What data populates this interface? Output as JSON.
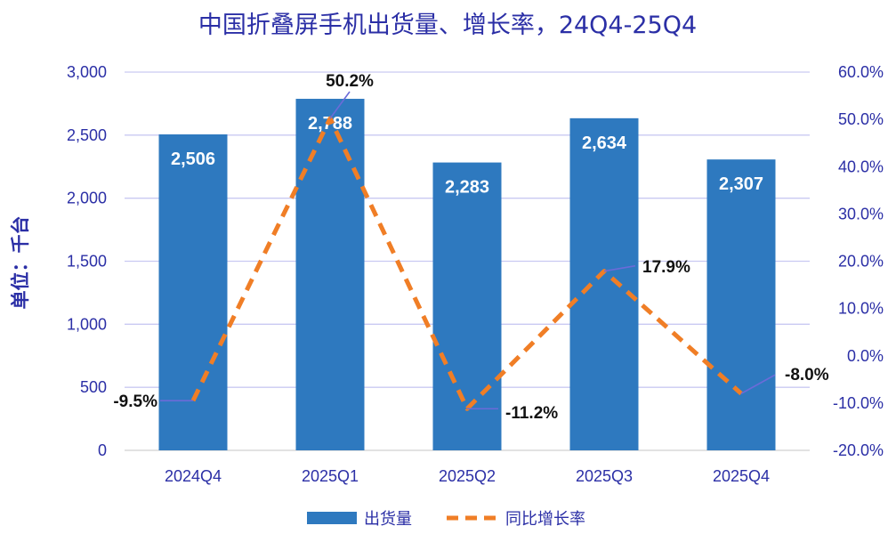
{
  "chart_data": {
    "type": "bar+line",
    "title": "中国折叠屏手机出货量、增长率，24Q4-25Q4",
    "ylabel": "单位：千台",
    "categories": [
      "2024Q4",
      "2025Q1",
      "2025Q2",
      "2025Q3",
      "2025Q4"
    ],
    "series": [
      {
        "name": "出货量",
        "type": "bar",
        "axis": "left",
        "values": [
          2506,
          2788,
          2283,
          2634,
          2307
        ],
        "labels": [
          "2,506",
          "2,788",
          "2,283",
          "2,634",
          "2,307"
        ]
      },
      {
        "name": "同比增长率",
        "type": "line",
        "style": "dashed",
        "axis": "right",
        "values": [
          -9.5,
          50.2,
          -11.2,
          17.9,
          -8.0
        ],
        "labels": [
          "-9.5%",
          "50.2%",
          "-11.2%",
          "17.9%",
          "-8.0%"
        ]
      }
    ],
    "y_left": {
      "min": 0,
      "max": 3000,
      "ticks": [
        "0",
        "500",
        "1,000",
        "1,500",
        "2,000",
        "2,500",
        "3,000"
      ]
    },
    "y_right": {
      "min": -20,
      "max": 60,
      "ticks": [
        "-20.0%",
        "-10.0%",
        "0.0%",
        "10.0%",
        "20.0%",
        "30.0%",
        "40.0%",
        "50.0%",
        "60.0%"
      ]
    },
    "grid": true,
    "legend_position": "bottom",
    "colors": {
      "bar": "#2e79bf",
      "line": "#f07e26",
      "text": "#2b2fa6",
      "grid": "#c9c9f2",
      "leader": "#6b6bd8"
    }
  }
}
